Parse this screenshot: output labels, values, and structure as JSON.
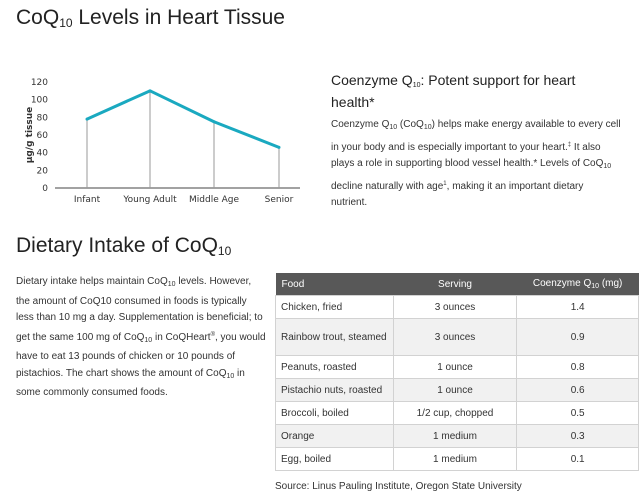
{
  "chart_section": {
    "title_main": "CoQ",
    "title_sub": "10",
    "title_end": " Levels in Heart Tissue"
  },
  "chart_data": {
    "type": "line",
    "title": "CoQ10 Levels in Heart Tissue",
    "xlabel": "",
    "ylabel": "µg/g tissue",
    "categories": [
      "Infant",
      "Young Adult",
      "Middle Age",
      "Senior"
    ],
    "series": [
      {
        "values": [
          78,
          110,
          75,
          46
        ]
      }
    ],
    "ylim": [
      0,
      120
    ],
    "yticks": [
      0,
      20,
      40,
      60,
      80,
      100,
      120
    ],
    "line_color": "#1aa9c0",
    "drop_line_color": "#9a9a9a"
  },
  "callout": {
    "title_a": "Coenzyme Q",
    "title_sub": "10",
    "title_b": ": Potent support for heart health*",
    "p1": "Coenzyme Q",
    "p1_sub": "10",
    "p2": " (CoQ",
    "p2_sub": "10",
    "p3": ") helps make energy available to every cell in your body and is especially important to your heart.",
    "p3_sup": "‡",
    "p4": " It also plays a role in supporting blood vessel health.* Levels of CoQ",
    "p4_sub": "10",
    "p5": " decline naturally with age",
    "p5_sup": "1",
    "p6": ", making it an important dietary nutrient."
  },
  "dietary_section": {
    "title_main": "Dietary Intake of CoQ",
    "title_sub": "10",
    "t1": "Dietary intake helps maintain CoQ",
    "t1_sub": "10",
    "t2": " levels. However, the amount of CoQ10 consumed in foods is typically less than 10 mg a day. Supplementation is beneficial; to get the same 100 mg of CoQ",
    "t2_sub": "10",
    "t3": " in CoQHeart",
    "t3_sup": "®",
    "t4": ", you would have to eat 13 pounds of chicken or 10 pounds of pistachios. The chart shows the amount of CoQ",
    "t4_sub": "10",
    "t5": " in some commonly consumed foods."
  },
  "table": {
    "headers": {
      "food": "Food",
      "serving": "Serving",
      "coq_a": "Coenzyme Q",
      "coq_sub": "10",
      "coq_b": " (mg)"
    },
    "rows": [
      {
        "food": "Chicken, fried",
        "serving": "3 ounces",
        "mg": "1.4"
      },
      {
        "food": "Rainbow trout, steamed",
        "serving": "3 ounces",
        "mg": "0.9"
      },
      {
        "food": "Peanuts, roasted",
        "serving": "1 ounce",
        "mg": "0.8"
      },
      {
        "food": "Pistachio nuts, roasted",
        "serving": "1 ounce",
        "mg": "0.6"
      },
      {
        "food": "Broccoli, boiled",
        "serving": "1/2 cup, chopped",
        "mg": "0.5"
      },
      {
        "food": "Orange",
        "serving": "1 medium",
        "mg": "0.3"
      },
      {
        "food": "Egg, boiled",
        "serving": "1 medium",
        "mg": "0.1"
      }
    ]
  },
  "source": "Source: Linus Pauling Institute, Oregon State University"
}
